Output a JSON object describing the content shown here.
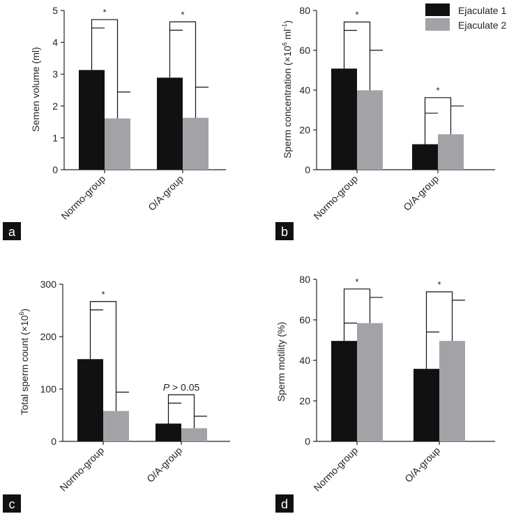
{
  "colors": {
    "ejaculate1": "#111111",
    "ejaculate2": "#a3a3a7",
    "axis": "#222222",
    "panel_label_bg": "#111111",
    "panel_label_text": "#ffffff"
  },
  "legend": {
    "position": "top-right",
    "entries": [
      "Ejaculate 1",
      "Ejaculate 2"
    ]
  },
  "chart_data": [
    {
      "panel": "a",
      "type": "bar",
      "ylabel": "Semen volume (ml)",
      "ylim": [
        0,
        5
      ],
      "yticks": [
        0,
        1,
        2,
        3,
        4,
        5
      ],
      "categories": [
        "Normo-group",
        "O/A-group"
      ],
      "series": [
        {
          "name": "Ejaculate 1",
          "values": [
            3.13,
            2.89
          ],
          "errors": [
            1.32,
            1.49
          ]
        },
        {
          "name": "Ejaculate 2",
          "values": [
            1.61,
            1.63
          ],
          "errors": [
            0.83,
            0.96
          ]
        }
      ],
      "annotations": [
        "*",
        "*"
      ]
    },
    {
      "panel": "b",
      "type": "bar",
      "ylabel_main": "Sperm concentration (×10",
      "ylabel_sup1": "6",
      "ylabel_mid": " ml",
      "ylabel_sup2": "-1",
      "ylabel_end": ")",
      "ylim": [
        0,
        80
      ],
      "yticks": [
        0,
        20,
        40,
        60,
        80
      ],
      "categories": [
        "Normo-group",
        "O/A-group"
      ],
      "series": [
        {
          "name": "Ejaculate 1",
          "values": [
            50.8,
            12.8
          ],
          "errors": [
            19.2,
            15.6
          ]
        },
        {
          "name": "Ejaculate 2",
          "values": [
            39.9,
            17.8
          ],
          "errors": [
            20.1,
            14.2
          ]
        }
      ],
      "annotations": [
        "*",
        "*"
      ]
    },
    {
      "panel": "c",
      "type": "bar",
      "ylabel_main": "Total sperm count (×10",
      "ylabel_sup1": "6",
      "ylabel_end": ")",
      "ylim": [
        0,
        300
      ],
      "yticks": [
        0,
        100,
        200,
        300
      ],
      "categories": [
        "Normo-group",
        "O/A-group"
      ],
      "series": [
        {
          "name": "Ejaculate 1",
          "values": [
            157,
            34
          ],
          "errors": [
            94,
            39
          ]
        },
        {
          "name": "Ejaculate 2",
          "values": [
            58,
            25
          ],
          "errors": [
            36,
            23
          ]
        }
      ],
      "annotations": [
        "*",
        "P > 0.05"
      ]
    },
    {
      "panel": "d",
      "type": "bar",
      "ylabel": "Sperm motility (%)",
      "ylim": [
        0,
        80
      ],
      "yticks": [
        0,
        20,
        40,
        60,
        80
      ],
      "categories": [
        "Normo-group",
        "O/A-group"
      ],
      "series": [
        {
          "name": "Ejaculate 1",
          "values": [
            49.6,
            35.8
          ],
          "errors": [
            8.8,
            18.2
          ]
        },
        {
          "name": "Ejaculate 2",
          "values": [
            58.4,
            49.6
          ],
          "errors": [
            12.7,
            20.1
          ]
        }
      ],
      "annotations": [
        "*",
        "*"
      ]
    }
  ]
}
